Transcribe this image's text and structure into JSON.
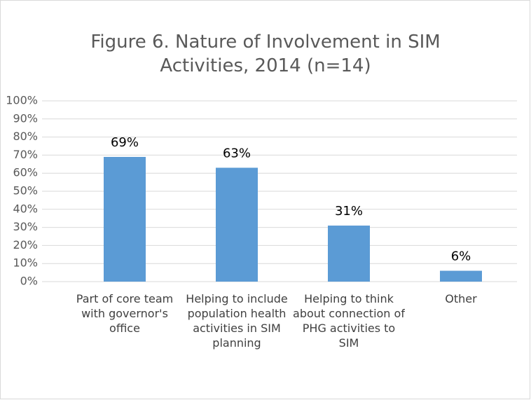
{
  "chart_data": {
    "type": "bar",
    "title": "Figure 6. Nature of Involvement in SIM Activities, 2014 (n=14)",
    "categories": [
      "Part of core team with governor's office",
      "Helping to include population health activities in SIM planning",
      "Helping to think about connection of PHG activities to SIM",
      "Other"
    ],
    "values": [
      69,
      63,
      31,
      6
    ],
    "value_labels": [
      "69%",
      "63%",
      "31%",
      "6%"
    ],
    "color": "#5b9bd5",
    "ylim": [
      0,
      100
    ],
    "yticks": [
      {
        "value": 0,
        "label": "0%"
      },
      {
        "value": 10,
        "label": "10%"
      },
      {
        "value": 20,
        "label": "20%"
      },
      {
        "value": 30,
        "label": "30%"
      },
      {
        "value": 40,
        "label": "40%"
      },
      {
        "value": 50,
        "label": "50%"
      },
      {
        "value": 60,
        "label": "60%"
      },
      {
        "value": 70,
        "label": "70%"
      },
      {
        "value": 80,
        "label": "80%"
      },
      {
        "value": 90,
        "label": "90%"
      },
      {
        "value": 100,
        "label": "100%"
      }
    ],
    "grid": true
  }
}
